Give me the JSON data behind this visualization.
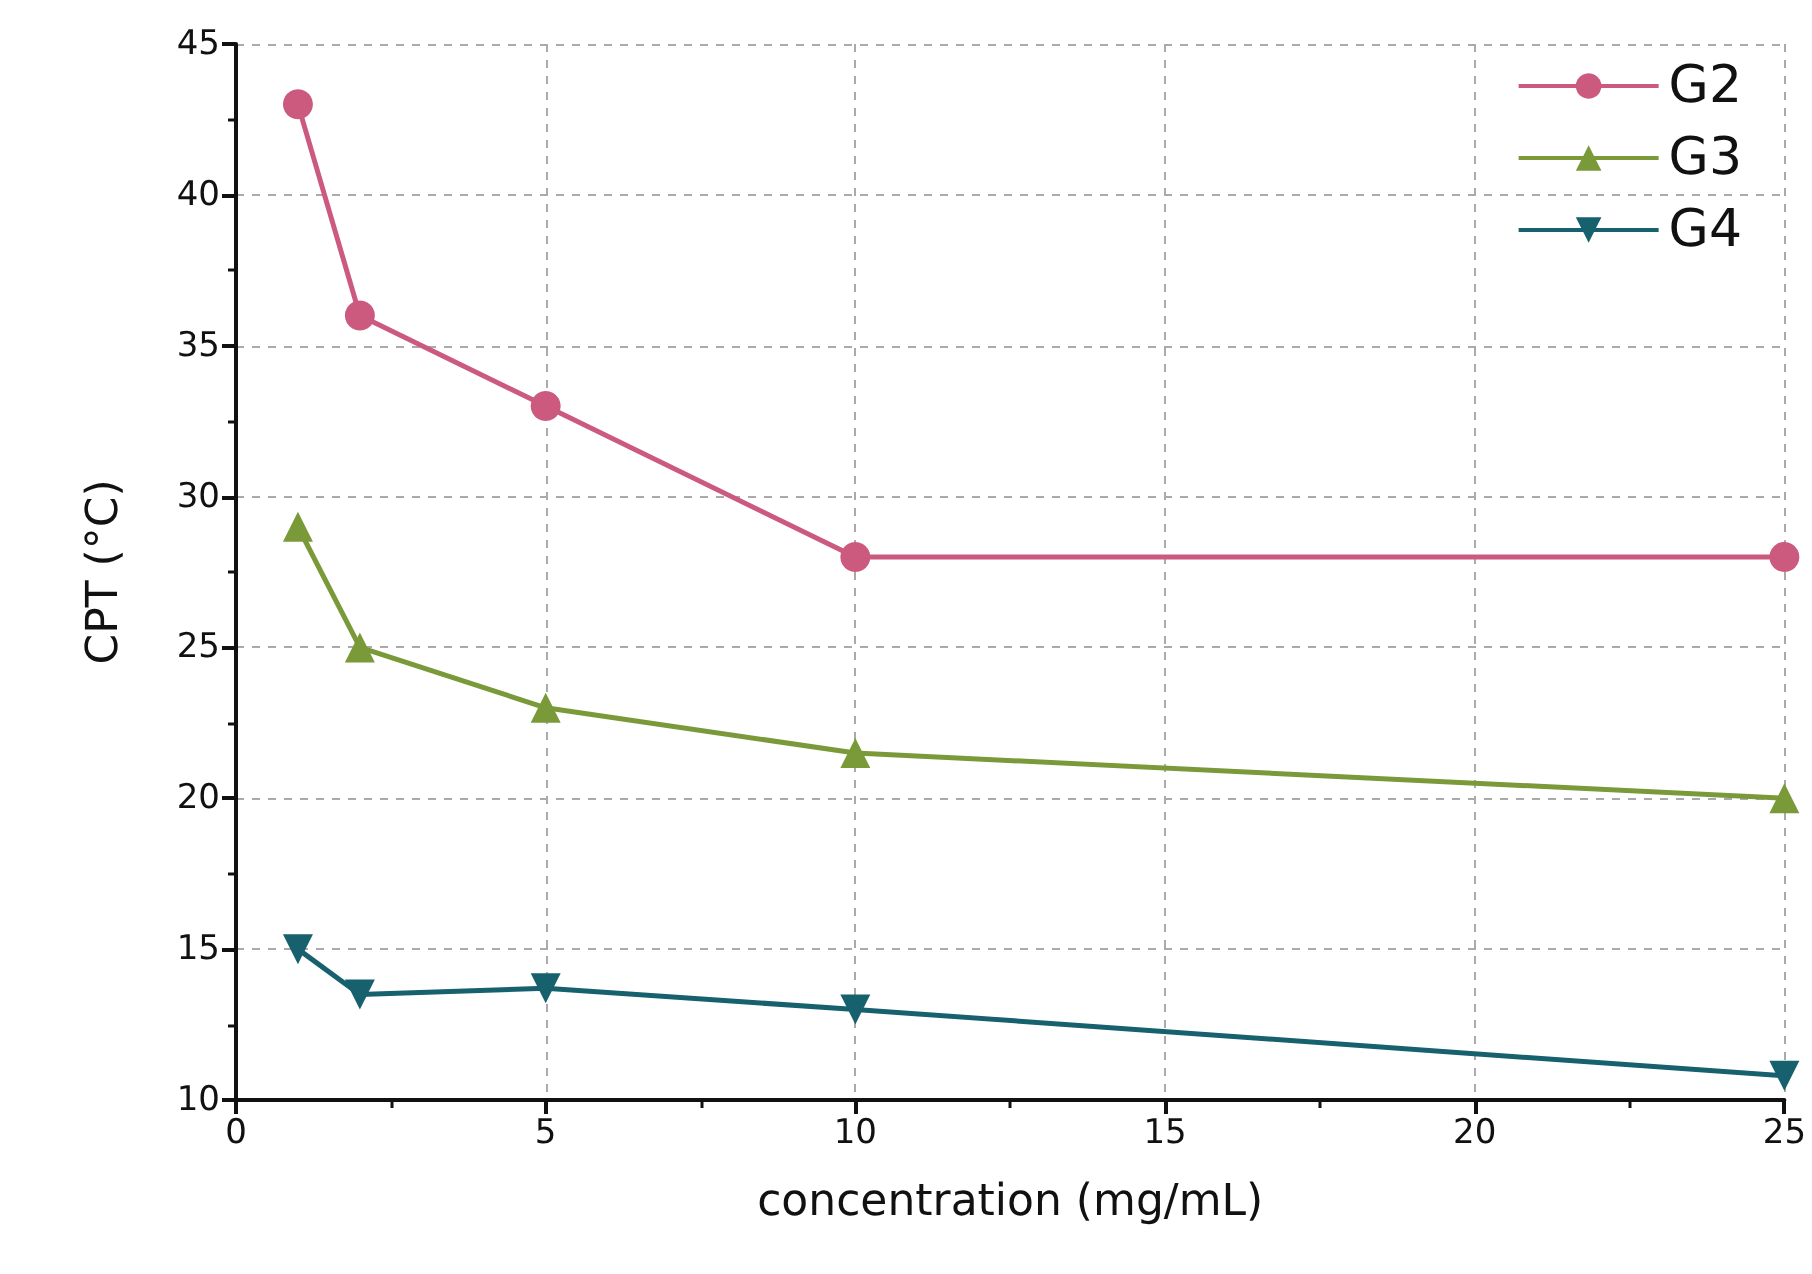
{
  "chart_data": {
    "type": "line",
    "xlabel": "concentration (mg/mL)",
    "ylabel": "CPT (°C)",
    "x": [
      1,
      2,
      5,
      10,
      25
    ],
    "series": [
      {
        "name": "G2",
        "color": "#cc5a7e",
        "marker": "circle",
        "values": [
          43,
          36,
          33,
          28,
          28
        ]
      },
      {
        "name": "G3",
        "color": "#7a9a3a",
        "marker": "triangle",
        "values": [
          29,
          25,
          23,
          21.5,
          20
        ]
      },
      {
        "name": "G4",
        "color": "#17606e",
        "marker": "triangle-down",
        "values": [
          15,
          13.5,
          13.7,
          13,
          10.8
        ]
      }
    ],
    "xlim": [
      0,
      25
    ],
    "xticks": [
      0,
      5,
      10,
      15,
      20,
      25
    ],
    "ylim": [
      10,
      45
    ],
    "yticks": [
      10,
      15,
      20,
      25,
      30,
      35,
      40,
      45
    ],
    "grid": true,
    "legend": "top right",
    "line_style": "solid"
  }
}
